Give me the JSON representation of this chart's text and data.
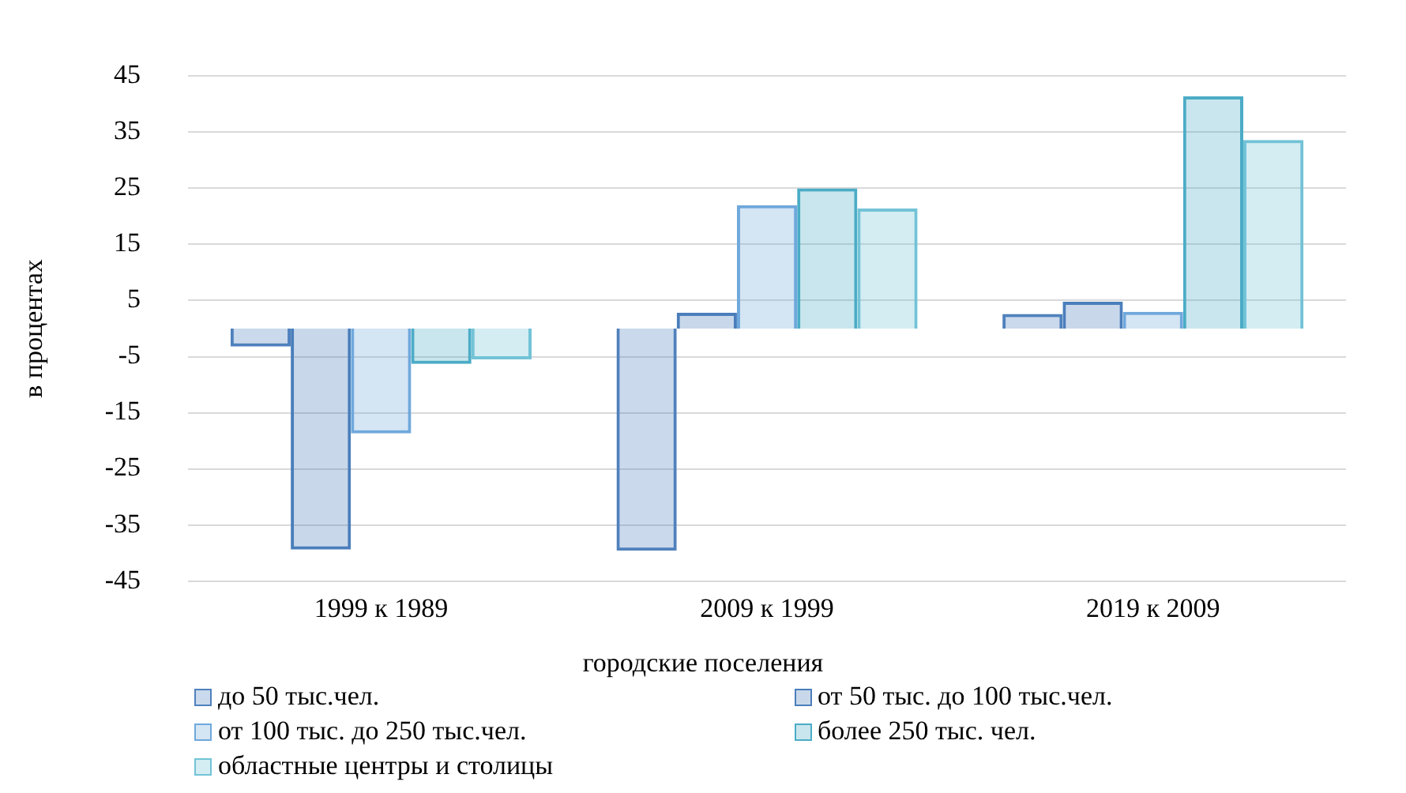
{
  "chart_data": {
    "type": "bar",
    "xlabel": "городские поселения",
    "ylabel": "в процентах",
    "categories": [
      "1999 к 1989",
      "2009 к 1999",
      "2019 к 2009"
    ],
    "series": [
      {
        "name": "до 50 тыс.чел.",
        "color": "#4f81bd",
        "values": [
          -3.2,
          -39.6,
          2.6
        ]
      },
      {
        "name": "от 50 тыс. до 100 тыс.чел.",
        "color": "#4a7ebb",
        "values": [
          -39.4,
          2.8,
          4.8
        ]
      },
      {
        "name": "от 100 тыс. до 250 тыс.чел.",
        "color": "#6fa8dc",
        "values": [
          -18.7,
          22.0,
          3.0
        ]
      },
      {
        "name": "более 250 тыс. чел.",
        "color": "#4bacc6",
        "values": [
          -6.3,
          25.0,
          41.4
        ]
      },
      {
        "name": "областные центры и столицы",
        "color": "#72c3d6",
        "values": [
          -5.5,
          21.4,
          33.6
        ]
      }
    ],
    "ylim": [
      -45,
      45
    ],
    "yticks": [
      -45,
      -35,
      -25,
      -15,
      -5,
      5,
      15,
      25,
      35,
      45
    ],
    "grid": "y",
    "legend": "bottom"
  }
}
